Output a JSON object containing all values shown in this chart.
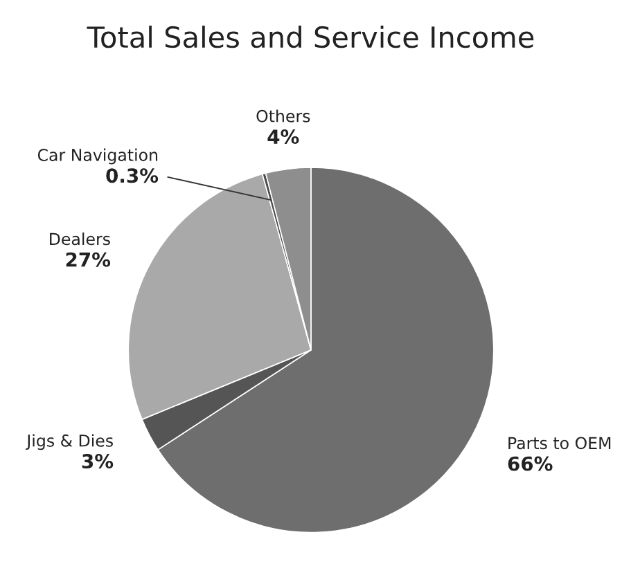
{
  "chart_data": {
    "type": "pie",
    "title": "Total Sales and Service Income",
    "categories": [
      "Parts to OEM",
      "Jigs & Dies",
      "Dealers",
      "Car Navigation",
      "Others"
    ],
    "values": [
      66,
      3,
      27,
      0.3,
      4
    ],
    "value_labels": [
      "66%",
      "3%",
      "27%",
      "0.3%",
      "4%"
    ],
    "colors": [
      "#6e6e6e",
      "#555555",
      "#a9a9a9",
      "#4a4a4a",
      "#8e8e8e"
    ],
    "legend": false
  }
}
